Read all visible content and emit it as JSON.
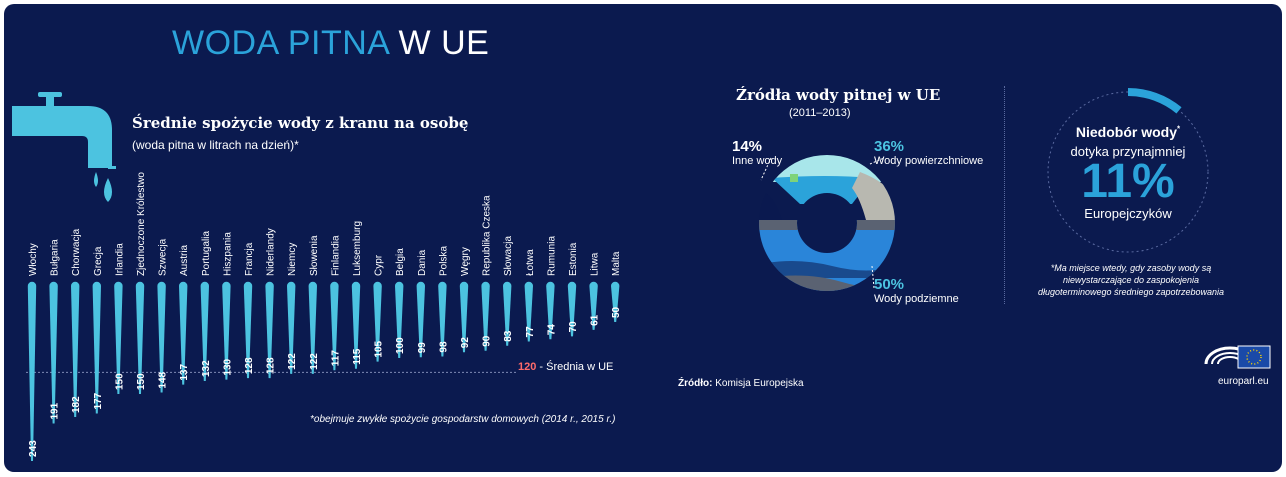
{
  "title": {
    "part1": "WODA PITNA",
    "part2": "W UE"
  },
  "bar_chart_text": {
    "title": "Średnie spożycie wody z kranu na osobę",
    "subtitle": "(woda pitna w litrach na dzień)*",
    "note": "*obejmuje zwykłe spożycie gospodarstw domowych (2014 r., 2015 r.)",
    "avg_value": "120",
    "avg_label": " - Średnia w UE"
  },
  "donut_text": {
    "title": "Źródła wody pitnej w UE",
    "years": "(2011–2013)",
    "source_label": "Źródło:",
    "source_value": " Komisja Europejska"
  },
  "stat": {
    "title": "Niedobór wody",
    "title_mark": "*",
    "subtitle": "dotyka przynajmniej",
    "value": "11%",
    "who": "Europejczyków",
    "note": "*Ma miejsce wtedy, gdy zasoby wody są niewystarczające do zaspokojenia długoterminowego średniego zapotrzebowania"
  },
  "logo": {
    "text": "europarl.eu"
  },
  "colors": {
    "background": "#0b1a4f",
    "accent": "#2ba3da",
    "bar": "#4cc3e0",
    "average": "#ff6b6b",
    "surface_water": "#a8e6ea",
    "ground_water": "#2a85d9",
    "other_water": "#b8b8b0"
  },
  "chart_data": [
    {
      "type": "bar",
      "categories": [
        "Włochy",
        "Bułgaria",
        "Chorwacja",
        "Grecja",
        "Irlandia",
        "Zjednoczone Królestwo",
        "Szwecja",
        "Austria",
        "Portugalia",
        "Hiszpania",
        "Francja",
        "Niderlandy",
        "Niemcy",
        "Słowenia",
        "Finlandia",
        "Luksemburg",
        "Cypr",
        "Belgia",
        "Dania",
        "Polska",
        "Węgry",
        "Republika Czeska",
        "Słowacja",
        "Łotwa",
        "Rumunia",
        "Estonia",
        "Litwa",
        "Malta"
      ],
      "values": [
        243,
        191,
        182,
        177,
        150,
        150,
        148,
        137,
        132,
        130,
        128,
        128,
        122,
        122,
        117,
        115,
        105,
        100,
        99,
        98,
        92,
        90,
        83,
        77,
        74,
        70,
        61,
        50
      ],
      "reference_line": 120,
      "title": "Średnie spożycie wody z kranu na osobę"
    },
    {
      "type": "pie",
      "title": "Źródła wody pitnej w UE",
      "slices": [
        {
          "label": "Wody powierzchniowe",
          "pct": "36%",
          "value": 36
        },
        {
          "label": "Wody podziemne",
          "pct": "50%",
          "value": 50
        },
        {
          "label": "Inne wody",
          "pct": "14%",
          "value": 14
        }
      ]
    }
  ]
}
